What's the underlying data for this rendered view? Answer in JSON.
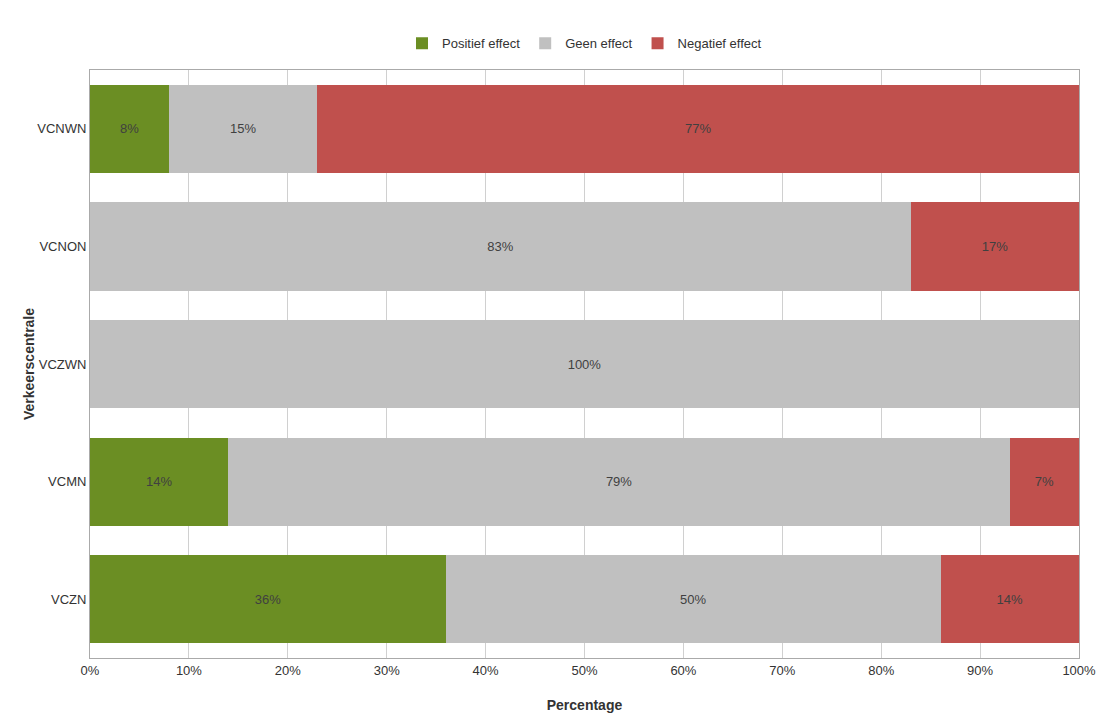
{
  "chart_data": {
    "type": "bar",
    "orientation": "horizontal",
    "stacked": true,
    "data_labels": true,
    "grid": true,
    "legend": "top",
    "xlabel": "Percentage",
    "ylabel": "Verkeerscentrale",
    "categories": [
      "VCNWN",
      "VCNON",
      "VCZWN",
      "VCMN",
      "VCZN"
    ],
    "series": [
      {
        "name": "Positief effect",
        "color": "#6b8e23",
        "values": [
          8,
          0,
          0,
          14,
          36
        ],
        "value_labels": [
          "8%",
          null,
          null,
          "14%",
          "36%"
        ]
      },
      {
        "name": "Geen effect",
        "color": "#c0c0c0",
        "values": [
          15,
          83,
          100,
          79,
          50
        ],
        "value_labels": [
          "15%",
          "83%",
          "100%",
          "79%",
          "50%"
        ]
      },
      {
        "name": "Negatief effect",
        "color": "#c0504d",
        "values": [
          77,
          17,
          0,
          7,
          14
        ],
        "value_labels": [
          "77%",
          "17%",
          null,
          "7%",
          "14%"
        ]
      }
    ],
    "xlim": [
      0,
      100
    ],
    "xticks": [
      {
        "value": 0,
        "label": "0%"
      },
      {
        "value": 10,
        "label": "10%"
      },
      {
        "value": 20,
        "label": "20%"
      },
      {
        "value": 30,
        "label": "30%"
      },
      {
        "value": 40,
        "label": "40%"
      },
      {
        "value": 50,
        "label": "50%"
      },
      {
        "value": 60,
        "label": "60%"
      },
      {
        "value": 70,
        "label": "70%"
      },
      {
        "value": 80,
        "label": "80%"
      },
      {
        "value": 90,
        "label": "90%"
      },
      {
        "value": 100,
        "label": "100%"
      }
    ]
  }
}
